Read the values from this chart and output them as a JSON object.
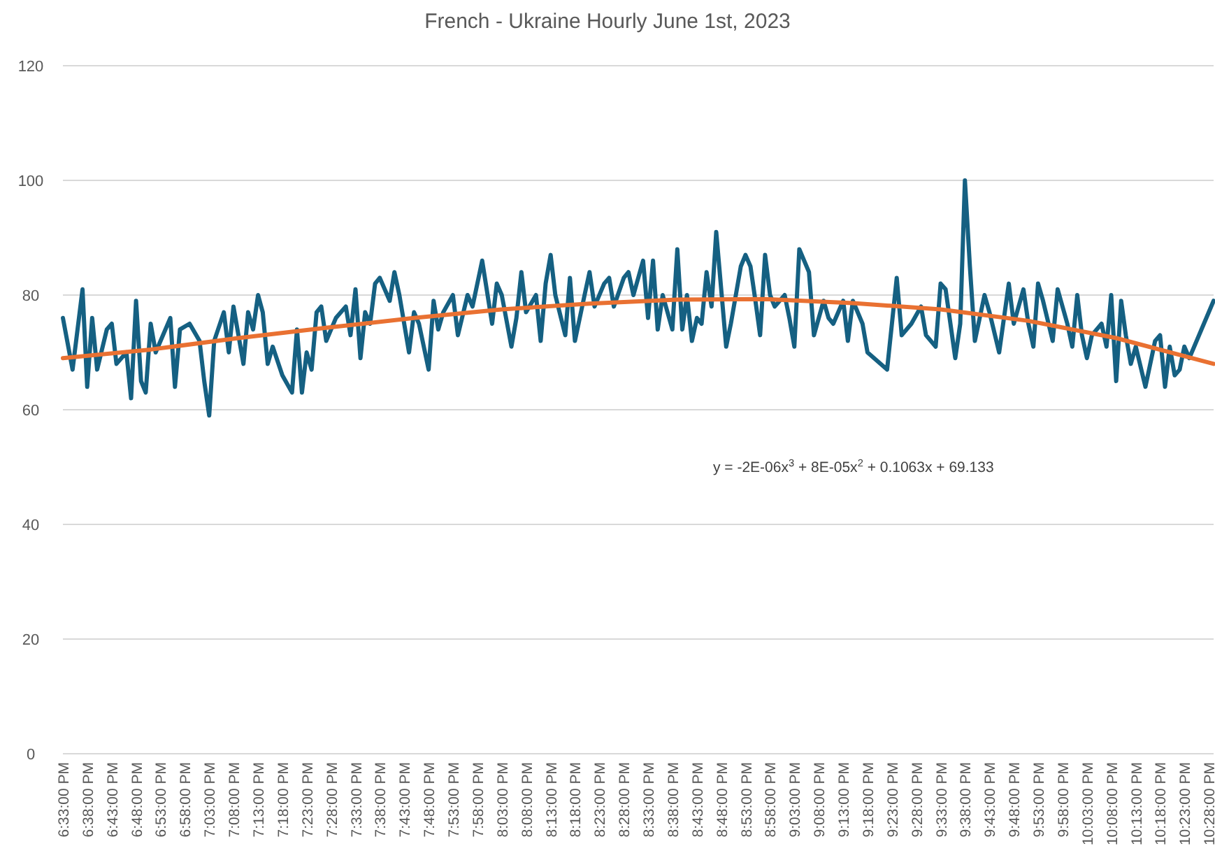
{
  "chart_data": {
    "type": "line",
    "title": "French - Ukraine Hourly June 1st, 2023",
    "annotations": [
      "y = -2E-06x$^{3}$ + 8E-05x$^{2}$ + 0.1063x + 69.133"
    ],
    "xlim": [
      18.55,
      22.483
    ],
    "xticks": [
      {
        "value": 18.55,
        "label": "6:33:00 PM"
      },
      {
        "value": 18.6333,
        "label": "6:38:00 PM"
      },
      {
        "value": 18.7167,
        "label": "6:43:00 PM"
      },
      {
        "value": 18.8,
        "label": "6:48:00 PM"
      },
      {
        "value": 18.8833,
        "label": "6:53:00 PM"
      },
      {
        "value": 18.9667,
        "label": "6:58:00 PM"
      },
      {
        "value": 19.05,
        "label": "7:03:00 PM"
      },
      {
        "value": 19.1333,
        "label": "7:08:00 PM"
      },
      {
        "value": 19.2167,
        "label": "7:13:00 PM"
      },
      {
        "value": 19.3,
        "label": "7:18:00 PM"
      },
      {
        "value": 19.3833,
        "label": "7:23:00 PM"
      },
      {
        "value": 19.4667,
        "label": "7:28:00 PM"
      },
      {
        "value": 19.55,
        "label": "7:33:00 PM"
      },
      {
        "value": 19.6333,
        "label": "7:38:00 PM"
      },
      {
        "value": 19.7167,
        "label": "7:43:00 PM"
      },
      {
        "value": 19.8,
        "label": "7:48:00 PM"
      },
      {
        "value": 19.8833,
        "label": "7:53:00 PM"
      },
      {
        "value": 19.9667,
        "label": "7:58:00 PM"
      },
      {
        "value": 20.05,
        "label": "8:03:00 PM"
      },
      {
        "value": 20.1333,
        "label": "8:08:00 PM"
      },
      {
        "value": 20.2167,
        "label": "8:13:00 PM"
      },
      {
        "value": 20.3,
        "label": "8:18:00 PM"
      },
      {
        "value": 20.3833,
        "label": "8:23:00 PM"
      },
      {
        "value": 20.4667,
        "label": "8:28:00 PM"
      },
      {
        "value": 20.55,
        "label": "8:33:00 PM"
      },
      {
        "value": 20.6333,
        "label": "8:38:00 PM"
      },
      {
        "value": 20.7167,
        "label": "8:43:00 PM"
      },
      {
        "value": 20.8,
        "label": "8:48:00 PM"
      },
      {
        "value": 20.8833,
        "label": "8:53:00 PM"
      },
      {
        "value": 20.9667,
        "label": "8:58:00 PM"
      },
      {
        "value": 21.05,
        "label": "9:03:00 PM"
      },
      {
        "value": 21.1333,
        "label": "9:08:00 PM"
      },
      {
        "value": 21.2167,
        "label": "9:13:00 PM"
      },
      {
        "value": 21.3,
        "label": "9:18:00 PM"
      },
      {
        "value": 21.3833,
        "label": "9:23:00 PM"
      },
      {
        "value": 21.4667,
        "label": "9:28:00 PM"
      },
      {
        "value": 21.55,
        "label": "9:33:00 PM"
      },
      {
        "value": 21.6333,
        "label": "9:38:00 PM"
      },
      {
        "value": 21.7167,
        "label": "9:43:00 PM"
      },
      {
        "value": 21.8,
        "label": "9:48:00 PM"
      },
      {
        "value": 21.8833,
        "label": "9:53:00 PM"
      },
      {
        "value": 21.9667,
        "label": "9:58:00 PM"
      },
      {
        "value": 22.05,
        "label": "10:03:00 PM"
      },
      {
        "value": 22.1333,
        "label": "10:08:00 PM"
      },
      {
        "value": 22.2167,
        "label": "10:13:00 PM"
      },
      {
        "value": 22.3,
        "label": "10:18:00 PM"
      },
      {
        "value": 22.3833,
        "label": "10:23:00 PM"
      },
      {
        "value": 22.4667,
        "label": "10:28:00 PM"
      }
    ],
    "ylim": [
      0,
      120
    ],
    "yticks": [
      0,
      20,
      40,
      60,
      80,
      100,
      120
    ],
    "grid": "y",
    "series": [
      {
        "color": "#156082",
        "x": [
          18.55,
          18.583,
          18.617,
          18.633,
          18.65,
          18.667,
          18.7,
          18.717,
          18.733,
          18.767,
          18.783,
          18.8,
          18.817,
          18.833,
          18.85,
          18.867,
          18.917,
          18.933,
          18.95,
          18.983,
          19.017,
          19.033,
          19.05,
          19.067,
          19.1,
          19.117,
          19.133,
          19.167,
          19.183,
          19.2,
          19.217,
          19.233,
          19.25,
          19.267,
          19.3,
          19.333,
          19.35,
          19.367,
          19.383,
          19.4,
          19.417,
          19.433,
          19.45,
          19.483,
          19.517,
          19.533,
          19.55,
          19.567,
          19.583,
          19.6,
          19.617,
          19.633,
          19.667,
          19.683,
          19.7,
          19.733,
          19.75,
          19.767,
          19.8,
          19.817,
          19.833,
          19.85,
          19.883,
          19.9,
          19.933,
          19.95,
          19.983,
          20.017,
          20.033,
          20.05,
          20.083,
          20.1,
          20.117,
          20.133,
          20.167,
          20.183,
          20.2,
          20.217,
          20.233,
          20.267,
          20.283,
          20.3,
          20.333,
          20.35,
          20.367,
          20.4,
          20.417,
          20.433,
          20.467,
          20.483,
          20.5,
          20.533,
          20.55,
          20.567,
          20.583,
          20.6,
          20.633,
          20.65,
          20.667,
          20.683,
          20.7,
          20.717,
          20.733,
          20.75,
          20.767,
          20.783,
          20.817,
          20.833,
          20.867,
          20.883,
          20.9,
          20.917,
          20.933,
          20.95,
          20.967,
          20.983,
          21.017,
          21.033,
          21.05,
          21.067,
          21.1,
          21.117,
          21.15,
          21.167,
          21.183,
          21.217,
          21.233,
          21.25,
          21.283,
          21.3,
          21.367,
          21.4,
          21.417,
          21.45,
          21.483,
          21.5,
          21.533,
          21.55,
          21.567,
          21.6,
          21.617,
          21.633,
          21.65,
          21.667,
          21.7,
          21.717,
          21.75,
          21.783,
          21.8,
          21.833,
          21.85,
          21.867,
          21.883,
          21.9,
          21.933,
          21.95,
          21.983,
          22.0,
          22.017,
          22.033,
          22.05,
          22.067,
          22.1,
          22.117,
          22.133,
          22.15,
          22.167,
          22.183,
          22.2,
          22.217,
          22.25,
          22.283,
          22.3,
          22.317,
          22.333,
          22.35,
          22.367,
          22.383,
          22.4,
          22.483
        ],
        "values": [
          76,
          67,
          81,
          64,
          76,
          67,
          74,
          75,
          68,
          70,
          62,
          79,
          65,
          63,
          75,
          70,
          76,
          64,
          74,
          75,
          72,
          65,
          59,
          72,
          77,
          70,
          78,
          68,
          77,
          74,
          80,
          77,
          68,
          71,
          66,
          63,
          74,
          63,
          70,
          67,
          77,
          78,
          72,
          76,
          78,
          73,
          81,
          69,
          77,
          75,
          82,
          83,
          79,
          84,
          80,
          70,
          77,
          75,
          67,
          79,
          74,
          77,
          80,
          73,
          80,
          78,
          86,
          75,
          82,
          80,
          71,
          76,
          84,
          77,
          80,
          72,
          82,
          87,
          80,
          73,
          83,
          72,
          80,
          84,
          78,
          82,
          83,
          78,
          83,
          84,
          80,
          86,
          76,
          86,
          74,
          80,
          74,
          88,
          74,
          80,
          72,
          76,
          75,
          84,
          78,
          91,
          71,
          75,
          85,
          87,
          85,
          79,
          73,
          87,
          80,
          78,
          80,
          76,
          71,
          88,
          84,
          73,
          79,
          76,
          75,
          79,
          72,
          79,
          75,
          70,
          67,
          83,
          73,
          75,
          78,
          73,
          71,
          82,
          81,
          69,
          75,
          100,
          85,
          72,
          80,
          77,
          70,
          82,
          75,
          81,
          75,
          71,
          82,
          79,
          72,
          81,
          75,
          71,
          80,
          73,
          69,
          73,
          75,
          71,
          80,
          65,
          79,
          73,
          68,
          71,
          64,
          72,
          73,
          64,
          71,
          66,
          67,
          71,
          69,
          79
        ]
      },
      {
        "color": "#e97132",
        "x": [
          18.55,
          18.85,
          19.15,
          19.45,
          19.75,
          20.05,
          20.35,
          20.65,
          20.95,
          21.25,
          21.55,
          21.85,
          22.15,
          22.483
        ],
        "values": [
          69,
          70.5,
          72.5,
          74.3,
          76,
          77.5,
          78.5,
          79.2,
          79.3,
          78.6,
          77.5,
          75.5,
          72.5,
          68
        ]
      }
    ]
  }
}
